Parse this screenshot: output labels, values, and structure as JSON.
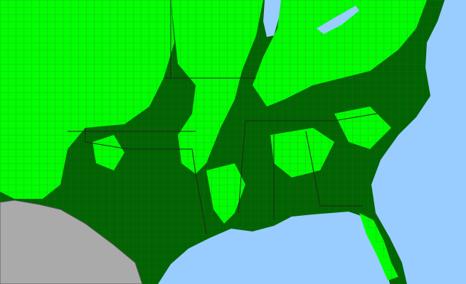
{
  "map": {
    "colors": {
      "water": "#99ccff",
      "present": "#00ff00",
      "present_dark": "#006400",
      "foreign_land": "#aaaaaa",
      "county_border": "#555555",
      "state_border": "#222222"
    }
  }
}
